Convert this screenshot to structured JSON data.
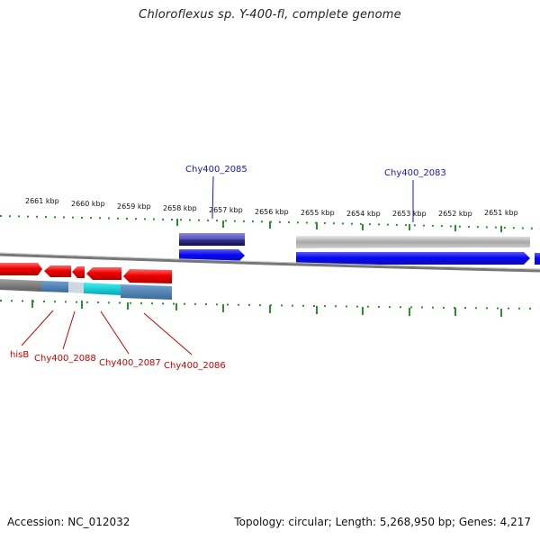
{
  "title": "Chloroflexus sp. Y-400-fl, complete genome",
  "footer": {
    "accession": "Accession: NC_012032",
    "summary": "Topology: circular; Length: 5,268,950 bp; Genes: 4,217"
  },
  "ticks": [
    "2661 kbp",
    "2660 kbp",
    "2659 kbp",
    "2658 kbp",
    "2657 kbp",
    "2656 kbp",
    "2655 kbp",
    "2654 kbp",
    "2653 kbp",
    "2652 kbp",
    "2651 kbp"
  ],
  "labels_top": [
    "Chy400_2085",
    "Chy400_2083"
  ],
  "labels_bottom": [
    "hisB",
    "Chy400_2088",
    "Chy400_2087",
    "Chy400_2086"
  ],
  "colors": {
    "forward_cds": "#0a0af0",
    "reverse_cds": "#e80000",
    "backbone": "#888888",
    "tick": "#2f8f2f",
    "top_label": "#1a1aa8",
    "bottom_label": "#c80000",
    "cyan": "#00c8d0",
    "steel": "#4a80b0"
  }
}
